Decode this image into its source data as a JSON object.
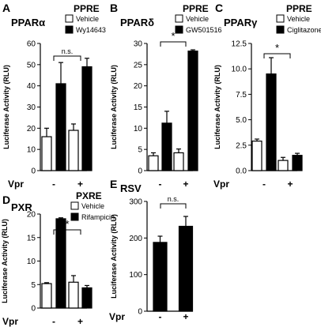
{
  "chart_data": [
    {
      "panel_letter": "A",
      "type": "bar",
      "receptor": "PPARα",
      "element": "PPRE",
      "ylabel": "Luciferase Activity (RLU)",
      "ylim": [
        0,
        60
      ],
      "yticks": [
        0,
        10,
        20,
        30,
        40,
        50,
        60
      ],
      "categories": [
        "-",
        "+"
      ],
      "category_title": "Vpr",
      "series": [
        {
          "name": "Vehicle",
          "values": [
            16,
            19
          ],
          "errors": [
            4,
            3
          ],
          "color": "#ffffff"
        },
        {
          "name": "Wy14643",
          "values": [
            41,
            49
          ],
          "errors": [
            10,
            4
          ],
          "color": "#000000"
        }
      ],
      "annotation": "n.s."
    },
    {
      "panel_letter": "B",
      "type": "bar",
      "receptor": "PPARδ",
      "element": "PPRE",
      "ylabel": "Luciferase Activity (RLU)",
      "ylim": [
        0,
        30
      ],
      "yticks": [
        0,
        5,
        10,
        15,
        20,
        25,
        30
      ],
      "categories": [
        "-",
        "+"
      ],
      "category_title": "Vpr",
      "series": [
        {
          "name": "Vehicle",
          "values": [
            3.5,
            4.2
          ],
          "errors": [
            0.7,
            0.9
          ],
          "color": "#ffffff"
        },
        {
          "name": "GW501516",
          "values": [
            11.2,
            28.2
          ],
          "errors": [
            2.8,
            0.3
          ],
          "color": "#000000"
        }
      ],
      "annotation": "*"
    },
    {
      "panel_letter": "C",
      "type": "bar",
      "receptor": "PPARγ",
      "element": "PPRE",
      "ylabel": "Luciferase Activity (RLU)",
      "ylim": [
        0,
        12.5
      ],
      "yticks": [
        0,
        2.5,
        5.0,
        7.5,
        10.0,
        12.5
      ],
      "categories": [
        "-",
        "+"
      ],
      "category_title": "Vpr",
      "series": [
        {
          "name": "Vehicle",
          "values": [
            2.9,
            1.0
          ],
          "errors": [
            0.2,
            0.3
          ],
          "color": "#ffffff"
        },
        {
          "name": "Ciglitazone",
          "values": [
            9.5,
            1.5
          ],
          "errors": [
            1.6,
            0.2
          ],
          "color": "#000000"
        }
      ],
      "annotation": "*"
    },
    {
      "panel_letter": "D",
      "type": "bar",
      "receptor": "PXR",
      "element": "PXRE",
      "ylabel": "Luciferase Activity (RLU)",
      "ylim": [
        0,
        20
      ],
      "yticks": [
        0,
        5,
        10,
        15,
        20
      ],
      "categories": [
        "-",
        "+"
      ],
      "category_title": "Vpr",
      "series": [
        {
          "name": "Vehicle",
          "values": [
            5.2,
            5.5
          ],
          "errors": [
            0.2,
            1.4
          ],
          "color": "#ffffff"
        },
        {
          "name": "Rifampicin",
          "values": [
            19.0,
            4.3
          ],
          "errors": [
            0.2,
            0.5
          ],
          "color": "#000000"
        }
      ],
      "annotation": "*"
    },
    {
      "panel_letter": "E",
      "type": "bar",
      "receptor": "RSV",
      "element": "",
      "ylabel": "Luciferase Activity (RLU)",
      "ylim": [
        0,
        300
      ],
      "yticks": [
        0,
        100,
        200,
        300
      ],
      "categories": [
        "-",
        "+"
      ],
      "category_title": "Vpr",
      "series": [
        {
          "values": [
            188,
            232
          ],
          "errors": [
            17,
            27
          ],
          "color": "#000000"
        }
      ],
      "annotation": "n.s."
    }
  ]
}
